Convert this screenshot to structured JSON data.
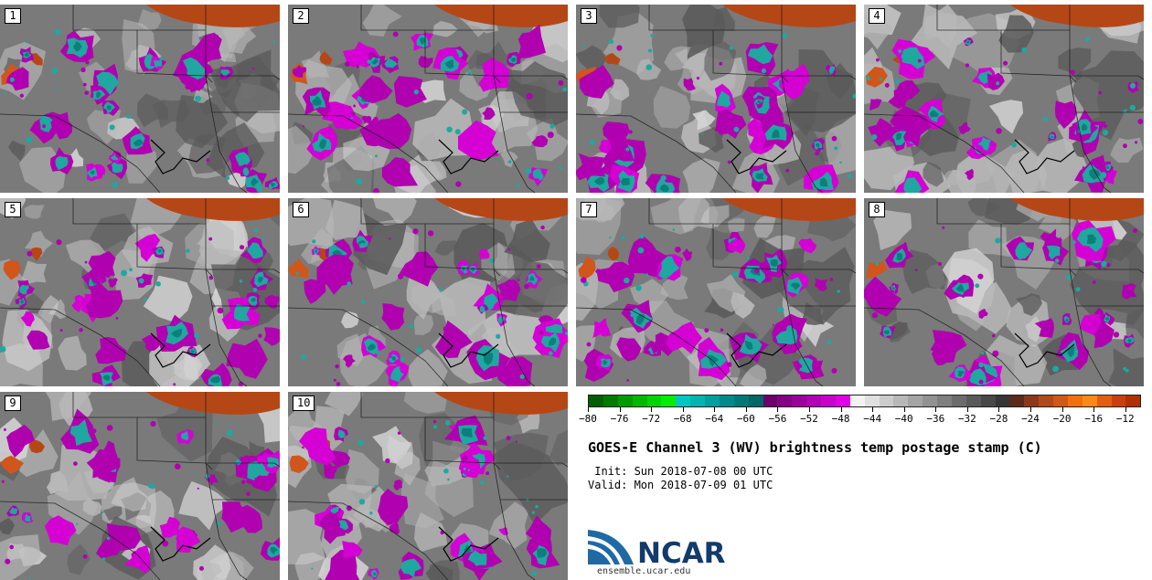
{
  "figure": {
    "title": "GOES-E Channel 3 (WV) brightness temp postage stamp (C)",
    "init": " Init: Sun 2018-07-08 00 UTC",
    "valid": "Valid: Mon 2018-07-09 01 UTC"
  },
  "panels": [
    {
      "label": "1",
      "seed": 11
    },
    {
      "label": "2",
      "seed": 23
    },
    {
      "label": "3",
      "seed": 37
    },
    {
      "label": "4",
      "seed": 41
    },
    {
      "label": "5",
      "seed": 53
    },
    {
      "label": "6",
      "seed": 67
    },
    {
      "label": "7",
      "seed": 71
    },
    {
      "label": "8",
      "seed": 83
    },
    {
      "label": "9",
      "seed": 97
    },
    {
      "label": "10",
      "seed": 109
    }
  ],
  "colorbar": {
    "tick_labels": [
      "−80",
      "−76",
      "−72",
      "−68",
      "−64",
      "−60",
      "−56",
      "−52",
      "−48",
      "−44",
      "−40",
      "−36",
      "−32",
      "−28",
      "−24",
      "−20",
      "−16",
      "−12"
    ],
    "min": -80,
    "max": -10,
    "colors": [
      "#005f00",
      "#007a00",
      "#009a00",
      "#00b800",
      "#00d400",
      "#00ee00",
      "#00c8c0",
      "#00b4b0",
      "#009f9f",
      "#008a8c",
      "#007878",
      "#006666",
      "#6a006a",
      "#820082",
      "#9a009a",
      "#b200b2",
      "#ca00ca",
      "#e000e0",
      "#f2f2f2",
      "#e0e0e0",
      "#cccccc",
      "#b8b8b8",
      "#a4a4a4",
      "#929292",
      "#7f7f7f",
      "#6c6c6c",
      "#5a5a5a",
      "#484848",
      "#363636",
      "#5a2a1a",
      "#8a3a1a",
      "#b04a1a",
      "#d05818",
      "#f07010",
      "#ff8818",
      "#e06010",
      "#c84010",
      "#b03000"
    ]
  },
  "logo": {
    "text": "NCAR",
    "site": "ensemble.ucar.edu",
    "colors": {
      "blue": "#1f6aa5",
      "dark": "#123a6b"
    }
  },
  "map_colors": {
    "bg": "#7a7a7a",
    "light": "#b8b8b8",
    "lighter": "#d6d6d6",
    "dark": "#5a5a5a",
    "purple": "#b000b0",
    "purple_hi": "#d400d4",
    "teal": "#1fa7a0",
    "teal_dk": "#0d7f7a",
    "orange": "#b54716",
    "orange_hi": "#d0561c",
    "border": "#1a1a1a"
  }
}
